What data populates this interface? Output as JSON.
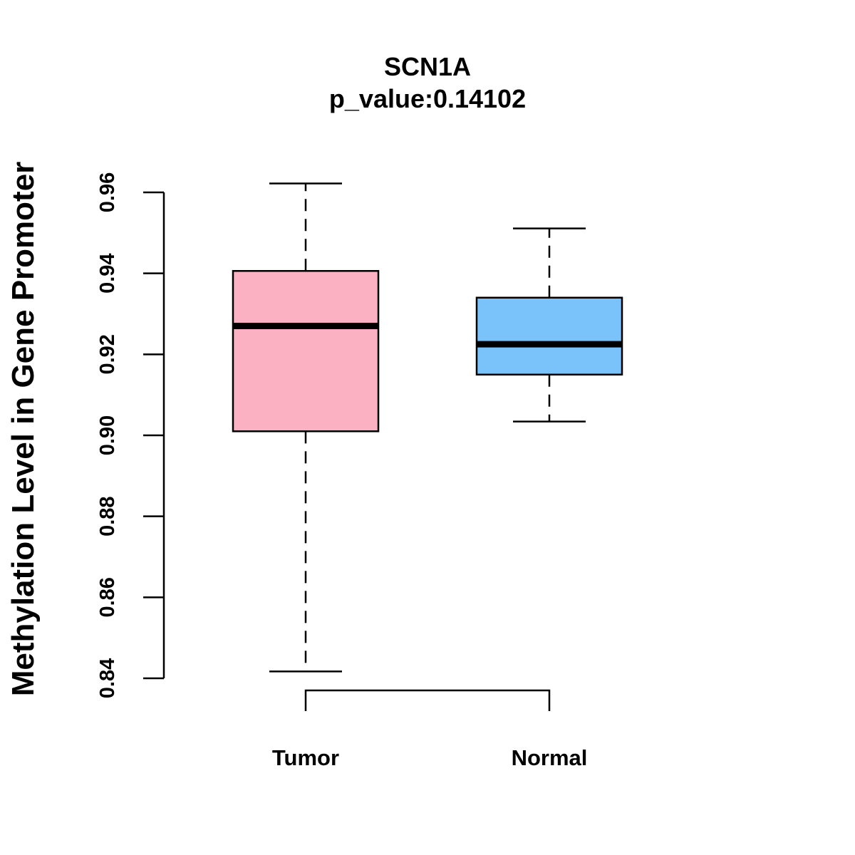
{
  "chart_data": {
    "type": "boxplot",
    "title": "SCN1A",
    "subtitle": "p_value:0.14102",
    "xlabel": "",
    "ylabel": "Methylation Level in Gene Promoter",
    "ylim": [
      0.84,
      0.96
    ],
    "yticks": [
      0.84,
      0.86,
      0.88,
      0.9,
      0.92,
      0.94,
      0.96
    ],
    "ytick_labels": [
      "0.84",
      "0.86",
      "0.88",
      "0.90",
      "0.92",
      "0.94",
      "0.96"
    ],
    "categories": [
      "Tumor",
      "Normal"
    ],
    "boxes": [
      {
        "name": "Tumor",
        "min": 0.8417,
        "q1": 0.901,
        "median": 0.927,
        "q3": 0.9406,
        "max": 0.9622,
        "color": "#FBB1C2"
      },
      {
        "name": "Normal",
        "min": 0.9034,
        "q1": 0.915,
        "median": 0.9225,
        "q3": 0.934,
        "max": 0.9511,
        "color": "#7AC3FA"
      }
    ],
    "bracket": {
      "from": "Tumor",
      "to": "Normal"
    }
  }
}
